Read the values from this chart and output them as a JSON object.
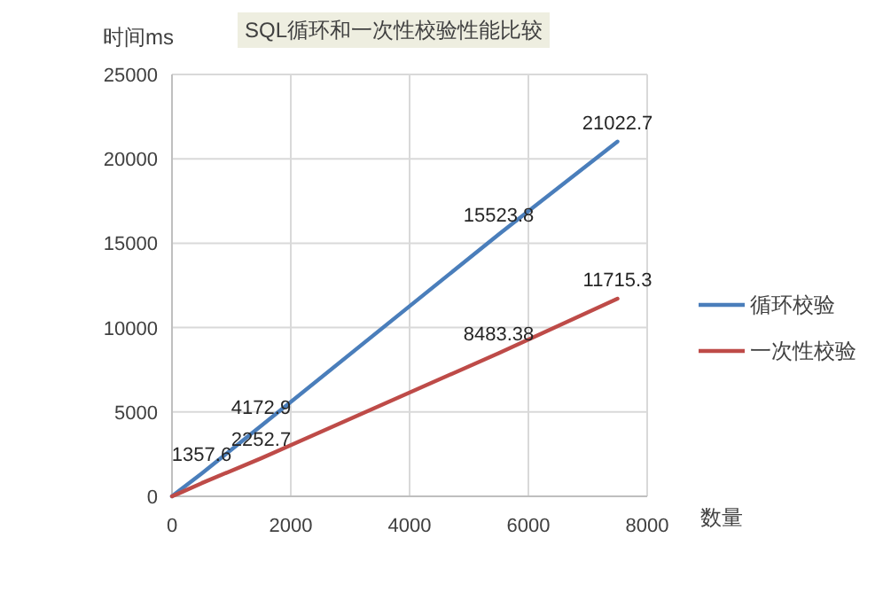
{
  "chart_data": {
    "type": "line",
    "title": "SQL循环和一次性校验性能比较",
    "ylabel": "时间ms",
    "xlabel": "数量",
    "x": [
      0,
      100,
      500,
      1500,
      5500,
      7500
    ],
    "xlim": [
      0,
      8000
    ],
    "xticks": [
      0,
      2000,
      4000,
      6000,
      8000
    ],
    "ylim": [
      0,
      25000
    ],
    "yticks": [
      0,
      5000,
      10000,
      15000,
      20000,
      25000
    ],
    "grid": true,
    "legend": "right",
    "marker": "none",
    "series": [
      {
        "name": "循环校验",
        "color": "#4a7ebb",
        "values": [
          0,
          280,
          1357.6,
          4172.9,
          15523.8,
          21022.7
        ],
        "value_labels": [
          null,
          null,
          "1357.6",
          "4172.9",
          "15523.8",
          "21022.7"
        ]
      },
      {
        "name": "一次性校验",
        "color": "#be4b48",
        "values": [
          0,
          150,
          780,
          2252.7,
          8483.38,
          11715.3
        ],
        "value_labels": [
          null,
          null,
          null,
          "2252.7",
          "8483.38",
          "11715.3"
        ]
      }
    ]
  }
}
